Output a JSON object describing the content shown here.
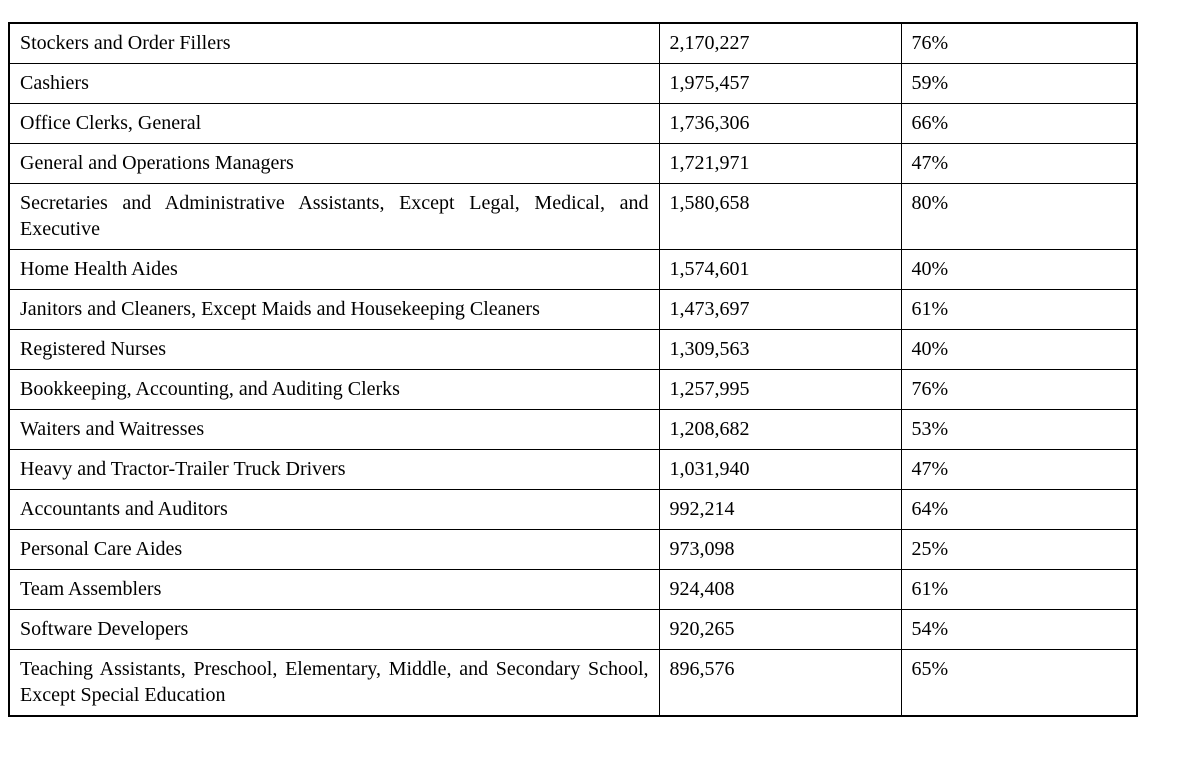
{
  "table": {
    "description": "Occupation employment and percentage table",
    "columns": [
      {
        "key": "occupation",
        "label": ""
      },
      {
        "key": "employment",
        "label": ""
      },
      {
        "key": "percent",
        "label": ""
      }
    ],
    "rows": [
      {
        "occupation": "Stockers and Order Fillers",
        "employment": "2,170,227",
        "percent": "76%"
      },
      {
        "occupation": "Cashiers",
        "employment": "1,975,457",
        "percent": "59%"
      },
      {
        "occupation": "Office Clerks, General",
        "employment": "1,736,306",
        "percent": "66%"
      },
      {
        "occupation": "General and Operations Managers",
        "employment": "1,721,971",
        "percent": "47%"
      },
      {
        "occupation": "Secretaries and Administrative Assistants, Except Legal, Medical, and Executive",
        "employment": "1,580,658",
        "percent": "80%"
      },
      {
        "occupation": "Home Health Aides",
        "employment": "1,574,601",
        "percent": "40%"
      },
      {
        "occupation": "Janitors and Cleaners, Except Maids and Housekeeping Cleaners",
        "employment": "1,473,697",
        "percent": "61%"
      },
      {
        "occupation": "Registered Nurses",
        "employment": "1,309,563",
        "percent": "40%"
      },
      {
        "occupation": "Bookkeeping, Accounting, and Auditing Clerks",
        "employment": "1,257,995",
        "percent": "76%"
      },
      {
        "occupation": "Waiters and Waitresses",
        "employment": "1,208,682",
        "percent": "53%"
      },
      {
        "occupation": "Heavy and Tractor-Trailer Truck Drivers",
        "employment": "1,031,940",
        "percent": "47%"
      },
      {
        "occupation": "Accountants and Auditors",
        "employment": "992,214",
        "percent": "64%"
      },
      {
        "occupation": "Personal Care Aides",
        "employment": "973,098",
        "percent": "25%"
      },
      {
        "occupation": "Team Assemblers",
        "employment": "924,408",
        "percent": "61%"
      },
      {
        "occupation": "Software Developers",
        "employment": "920,265",
        "percent": "54%"
      },
      {
        "occupation": "Teaching Assistants, Preschool, Elementary, Middle, and Secondary School, Except Special Education",
        "employment": "896,576",
        "percent": "65%"
      }
    ]
  }
}
